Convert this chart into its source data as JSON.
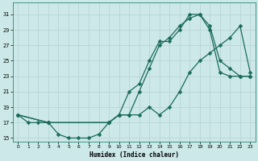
{
  "xlabel": "Humidex (Indice chaleur)",
  "bg_color": "#cce8e8",
  "grid_color": "#aacccc",
  "line_color": "#1a6b5a",
  "xlim": [
    -0.5,
    23.5
  ],
  "ylim": [
    14.5,
    32.5
  ],
  "xticks": [
    0,
    1,
    2,
    3,
    4,
    5,
    6,
    7,
    8,
    9,
    10,
    11,
    12,
    13,
    14,
    15,
    16,
    17,
    18,
    19,
    20,
    21,
    22,
    23
  ],
  "yticks": [
    15,
    17,
    19,
    21,
    23,
    25,
    27,
    29,
    31
  ],
  "line1_x": [
    0,
    1,
    2,
    3,
    4,
    5,
    6,
    7,
    8,
    9,
    10,
    11,
    12,
    13,
    14,
    15,
    16,
    17,
    18,
    19,
    20,
    21,
    22,
    23
  ],
  "line1_y": [
    18,
    17,
    17,
    17,
    15.5,
    15,
    15,
    15,
    15.5,
    17,
    18,
    18,
    21,
    24,
    27,
    28,
    29.5,
    30.5,
    31,
    29,
    23.5,
    23,
    23,
    23
  ],
  "line2_x": [
    0,
    3,
    9,
    10,
    11,
    12,
    13,
    14,
    15,
    16,
    17,
    18,
    19,
    20,
    21,
    22,
    23
  ],
  "line2_y": [
    18,
    17,
    17,
    18,
    21,
    22,
    25,
    27.5,
    27.5,
    29,
    31,
    31,
    29.5,
    25,
    24,
    23,
    23
  ],
  "line3_x": [
    0,
    3,
    9,
    10,
    11,
    12,
    13,
    14,
    15,
    16,
    17,
    18,
    19,
    20,
    21,
    22,
    23
  ],
  "line3_y": [
    18,
    17,
    17,
    18,
    18,
    18,
    19,
    18,
    19,
    21,
    23.5,
    25,
    26,
    27,
    28,
    29.5,
    23.5
  ]
}
